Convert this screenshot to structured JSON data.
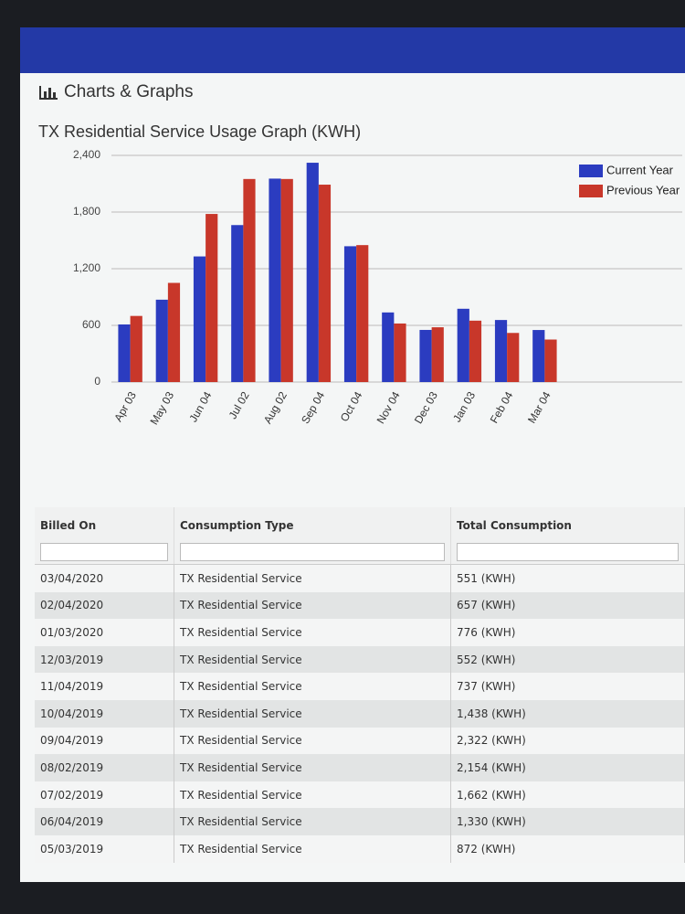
{
  "header": {
    "title": "Charts & Graphs"
  },
  "chart_data": {
    "type": "bar",
    "title": "TX Residential Service Usage Graph (KWH)",
    "categories": [
      "Apr 03",
      "May 03",
      "Jun 04",
      "Jul 02",
      "Aug 02",
      "Sep 04",
      "Oct 04",
      "Nov 04",
      "Dec 03",
      "Jan 03",
      "Feb 04",
      "Mar 04"
    ],
    "series": [
      {
        "name": "Current Year",
        "color": "#2b3cc0",
        "values": [
          610,
          872,
          1330,
          1662,
          2154,
          2322,
          1438,
          737,
          552,
          776,
          657,
          551
        ]
      },
      {
        "name": "Previous Year",
        "color": "#c8372a",
        "values": [
          700,
          1050,
          1780,
          2150,
          2150,
          2090,
          1450,
          620,
          580,
          650,
          520,
          450
        ]
      }
    ],
    "ylim": [
      0,
      2400
    ],
    "yticks": [
      0,
      600,
      {
        "value": 1200,
        "label": "1,200"
      },
      {
        "value": 1800,
        "label": "1,800"
      },
      {
        "value": 2400,
        "label": "2,400"
      }
    ],
    "grid": true,
    "legend": "top-right"
  },
  "table": {
    "columns": [
      "Billed On",
      "Consumption Type",
      "Total Consumption"
    ],
    "rows": [
      [
        "03/04/2020",
        "TX Residential Service",
        "551 (KWH)"
      ],
      [
        "02/04/2020",
        "TX Residential Service",
        "657 (KWH)"
      ],
      [
        "01/03/2020",
        "TX Residential Service",
        "776 (KWH)"
      ],
      [
        "12/03/2019",
        "TX Residential Service",
        "552 (KWH)"
      ],
      [
        "11/04/2019",
        "TX Residential Service",
        "737 (KWH)"
      ],
      [
        "10/04/2019",
        "TX Residential Service",
        "1,438 (KWH)"
      ],
      [
        "09/04/2019",
        "TX Residential Service",
        "2,322 (KWH)"
      ],
      [
        "08/02/2019",
        "TX Residential Service",
        "2,154 (KWH)"
      ],
      [
        "07/02/2019",
        "TX Residential Service",
        "1,662 (KWH)"
      ],
      [
        "06/04/2019",
        "TX Residential Service",
        "1,330 (KWH)"
      ],
      [
        "05/03/2019",
        "TX Residential Service",
        "872 (KWH)"
      ]
    ]
  }
}
